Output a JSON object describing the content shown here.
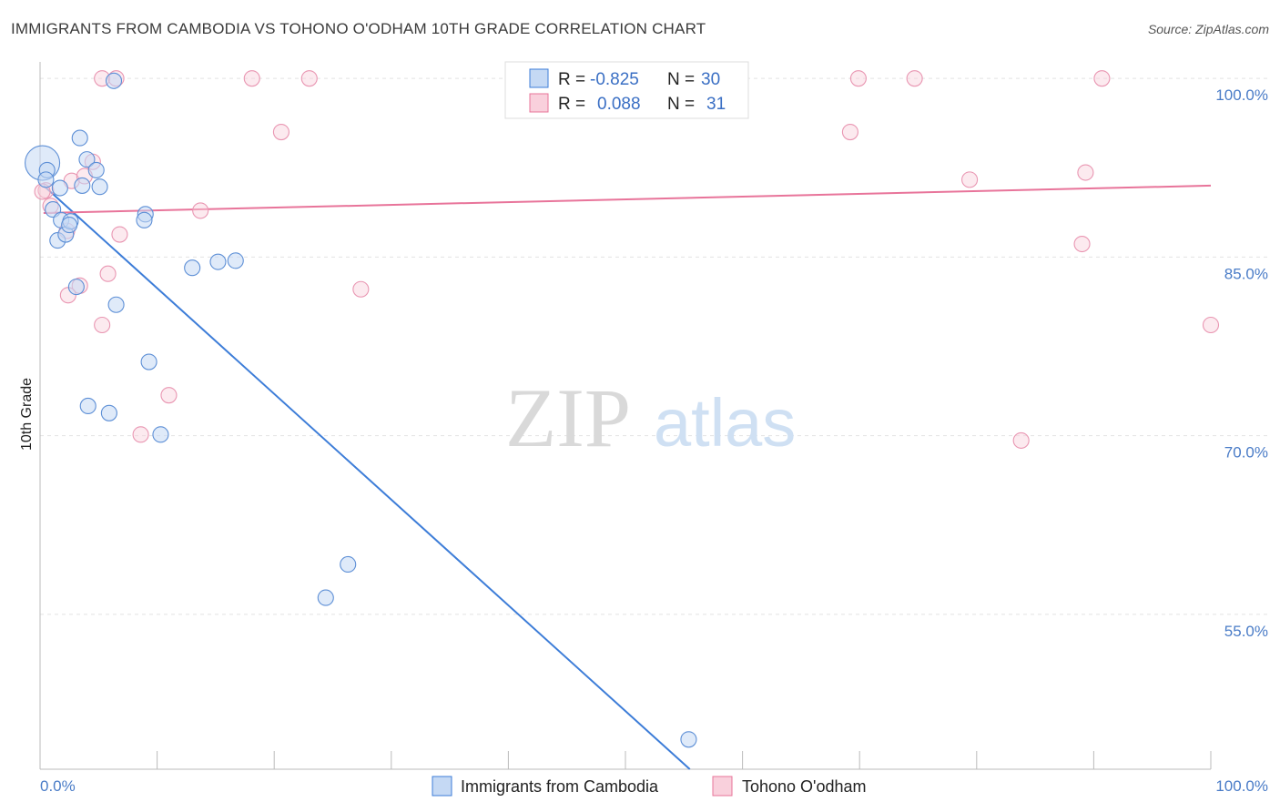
{
  "title": "IMMIGRANTS FROM CAMBODIA VS TOHONO O'ODHAM 10TH GRADE CORRELATION CHART",
  "source": "Source: ZipAtlas.com",
  "watermark": {
    "zip": "ZIP",
    "atlas": "atlas"
  },
  "legend": {
    "r_label": "R =",
    "n_label": "N =",
    "rows": [
      {
        "r": "-0.825",
        "n": "30",
        "color": "#aac8ef"
      },
      {
        "r": "0.088",
        "n": "31",
        "color": "#f5bccd"
      }
    ]
  },
  "colors": {
    "blue": "#3d7dd8",
    "pink": "#e8749a",
    "blue_fill": "#c5d9f4",
    "pink_fill": "#f9d0dc",
    "tick_text": "#4a7cc7"
  },
  "chart_data": {
    "type": "scatter",
    "xlabel": "",
    "ylabel": "10th Grade",
    "xlim": [
      0,
      100
    ],
    "ylim": [
      42,
      102
    ],
    "x_tick_labels": [
      "0.0%",
      "100.0%"
    ],
    "y_ticks": [
      {
        "value": 100,
        "label": "100.0%"
      },
      {
        "value": 85,
        "label": "85.0%"
      },
      {
        "value": 70,
        "label": "70.0%"
      },
      {
        "value": 55,
        "label": "55.0%"
      }
    ],
    "grid": true,
    "legend_position": "top-center",
    "series": [
      {
        "name": "Immigrants from Cambodia",
        "color": "#3d7dd8",
        "trend": {
          "x": [
            0.3,
            55.5
          ],
          "y": [
            91.0,
            42.0
          ]
        },
        "points": [
          {
            "x": 0.2,
            "y": 92.9,
            "big": true
          },
          {
            "x": 0.6,
            "y": 92.3
          },
          {
            "x": 0.5,
            "y": 91.5
          },
          {
            "x": 1.1,
            "y": 89.0
          },
          {
            "x": 1.7,
            "y": 90.8
          },
          {
            "x": 1.5,
            "y": 86.4
          },
          {
            "x": 1.8,
            "y": 88.1
          },
          {
            "x": 2.2,
            "y": 86.9
          },
          {
            "x": 2.6,
            "y": 88.0
          },
          {
            "x": 2.5,
            "y": 87.7
          },
          {
            "x": 3.4,
            "y": 95.0
          },
          {
            "x": 3.6,
            "y": 91.0
          },
          {
            "x": 4.0,
            "y": 93.2
          },
          {
            "x": 4.8,
            "y": 92.3
          },
          {
            "x": 5.1,
            "y": 90.9
          },
          {
            "x": 3.1,
            "y": 82.5
          },
          {
            "x": 6.3,
            "y": 99.8
          },
          {
            "x": 6.5,
            "y": 81.0
          },
          {
            "x": 9.0,
            "y": 88.6
          },
          {
            "x": 8.9,
            "y": 88.1
          },
          {
            "x": 9.3,
            "y": 76.2
          },
          {
            "x": 4.1,
            "y": 72.5
          },
          {
            "x": 5.9,
            "y": 71.9
          },
          {
            "x": 10.3,
            "y": 70.1
          },
          {
            "x": 13.0,
            "y": 84.1
          },
          {
            "x": 15.2,
            "y": 84.6
          },
          {
            "x": 16.7,
            "y": 84.7
          },
          {
            "x": 26.3,
            "y": 59.2
          },
          {
            "x": 24.4,
            "y": 56.4
          },
          {
            "x": 55.4,
            "y": 44.5
          }
        ]
      },
      {
        "name": "Tohono O'odham",
        "color": "#e8749a",
        "trend": {
          "x": [
            0.3,
            100.0
          ],
          "y": [
            88.7,
            91.0
          ]
        },
        "points": [
          {
            "x": 0.5,
            "y": 90.6
          },
          {
            "x": 0.9,
            "y": 89.3
          },
          {
            "x": 2.3,
            "y": 87.2
          },
          {
            "x": 2.7,
            "y": 91.4
          },
          {
            "x": 3.8,
            "y": 91.8
          },
          {
            "x": 4.5,
            "y": 93.0
          },
          {
            "x": 3.4,
            "y": 82.6
          },
          {
            "x": 2.4,
            "y": 81.8
          },
          {
            "x": 5.3,
            "y": 100.0
          },
          {
            "x": 6.5,
            "y": 100.0
          },
          {
            "x": 5.8,
            "y": 83.6
          },
          {
            "x": 5.3,
            "y": 79.3
          },
          {
            "x": 6.8,
            "y": 86.9
          },
          {
            "x": 11.0,
            "y": 73.4
          },
          {
            "x": 8.6,
            "y": 70.1
          },
          {
            "x": 13.7,
            "y": 88.9
          },
          {
            "x": 18.1,
            "y": 100.0
          },
          {
            "x": 20.6,
            "y": 95.5
          },
          {
            "x": 23.0,
            "y": 100.0
          },
          {
            "x": 27.4,
            "y": 82.3
          },
          {
            "x": 47.5,
            "y": 100.0
          },
          {
            "x": 69.2,
            "y": 95.5
          },
          {
            "x": 69.9,
            "y": 100.0
          },
          {
            "x": 74.7,
            "y": 100.0
          },
          {
            "x": 79.4,
            "y": 91.5
          },
          {
            "x": 83.8,
            "y": 69.6
          },
          {
            "x": 89.0,
            "y": 86.1
          },
          {
            "x": 89.3,
            "y": 92.1
          },
          {
            "x": 90.7,
            "y": 100.0
          },
          {
            "x": 100.0,
            "y": 79.3
          },
          {
            "x": 0.2,
            "y": 90.5
          }
        ]
      }
    ]
  }
}
